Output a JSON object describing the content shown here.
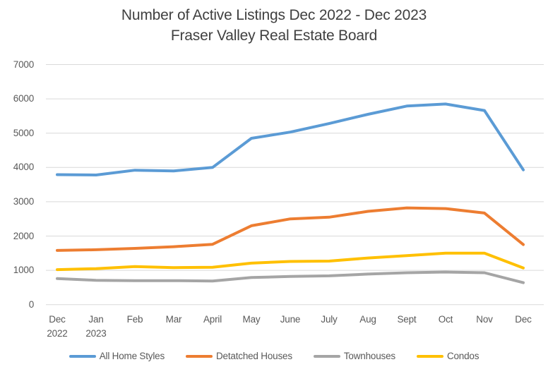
{
  "chart_data": {
    "type": "line",
    "title": "Number of Active Listings Dec 2022 - Dec 2023",
    "subtitle": "Fraser Valley Real Estate Board",
    "categories": [
      [
        "Dec",
        "2022"
      ],
      [
        "Jan",
        "2023"
      ],
      [
        "Feb"
      ],
      [
        "Mar"
      ],
      [
        "April"
      ],
      [
        "May"
      ],
      [
        "June"
      ],
      [
        "July"
      ],
      [
        "Aug"
      ],
      [
        "Sept"
      ],
      [
        "Oct"
      ],
      [
        "Nov"
      ],
      [
        "Dec"
      ]
    ],
    "series": [
      {
        "name": "All Home Styles",
        "color": "#5B9BD5",
        "values": [
          3790,
          3780,
          3920,
          3900,
          4000,
          4850,
          5030,
          5280,
          5550,
          5790,
          5850,
          5660,
          3930
        ]
      },
      {
        "name": "Detatched Houses",
        "color": "#ED7D31",
        "values": [
          1580,
          1600,
          1640,
          1690,
          1760,
          2300,
          2500,
          2550,
          2720,
          2820,
          2800,
          2670,
          1750
        ]
      },
      {
        "name": "Townhouses",
        "color": "#A5A5A5",
        "values": [
          760,
          710,
          700,
          700,
          690,
          790,
          820,
          840,
          890,
          930,
          950,
          930,
          640
        ]
      },
      {
        "name": "Condos",
        "color": "#FFC000",
        "values": [
          1020,
          1050,
          1110,
          1080,
          1090,
          1210,
          1260,
          1270,
          1360,
          1430,
          1500,
          1500,
          1070
        ]
      }
    ],
    "ylim": [
      0,
      7000
    ],
    "ytick_interval": 1000,
    "ytick_labels": [
      "0",
      "1000",
      "2000",
      "3000",
      "4000",
      "5000",
      "6000",
      "7000"
    ],
    "grid": "horizontal",
    "gridline_color": "#D9D9D9",
    "legend_position": "bottom",
    "xlabel": "",
    "ylabel": ""
  }
}
